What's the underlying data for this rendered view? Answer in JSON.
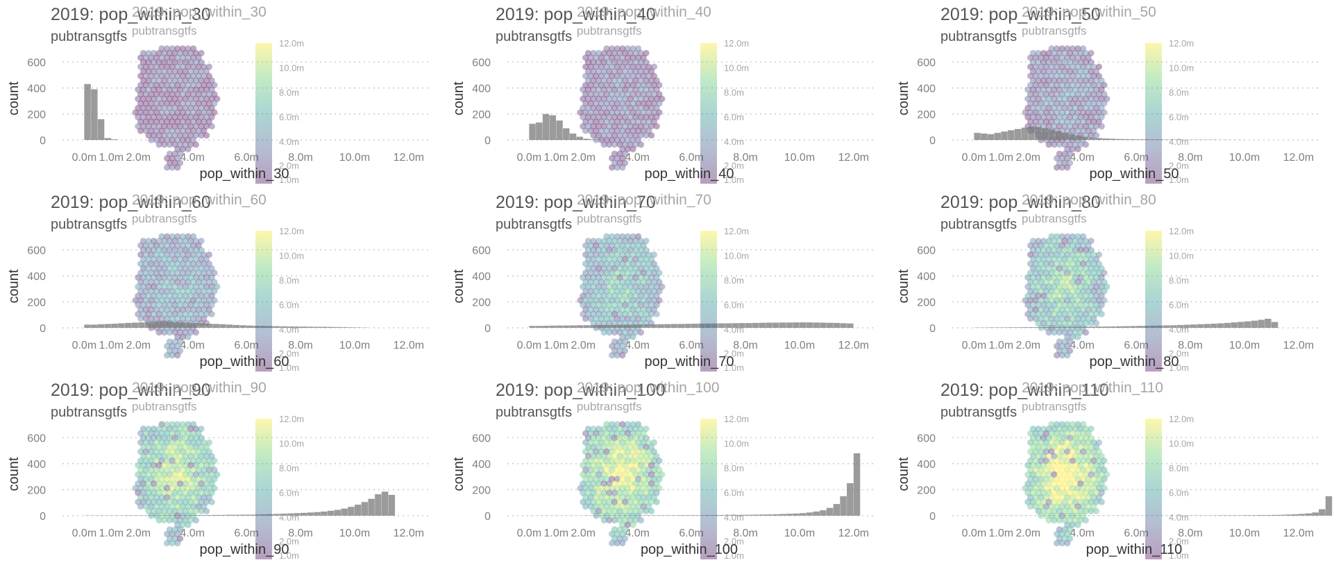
{
  "colors": {
    "bar": "#7a7a7a",
    "viridis": [
      "#440154",
      "#3b528b",
      "#21918c",
      "#5ec962",
      "#fde725"
    ]
  },
  "chart_data": [
    {
      "type": "bar",
      "title": "2019: pop_within_30",
      "subtitle": "pubtransgtfs",
      "overlay_title": "2019: pop_within_30",
      "overlay_subtitle": "pubtransgtfs",
      "xlabel": "pop_within_30",
      "ylabel": "count",
      "xlim": [
        -0.6,
        12.8
      ],
      "ylim": [
        0,
        650
      ],
      "bin_width": 0.25,
      "x_tick_labels": [
        "0.0m",
        "1.0m",
        "2.0m",
        "4.0m",
        "6.0m",
        "8.0m",
        "10.0m",
        "12.0m"
      ],
      "y_tick_labels": [
        "0",
        "200",
        "400",
        "600"
      ],
      "colorbar_labels": [
        "12.0m",
        "10.0m",
        "8.0m",
        "6.0m",
        "4.0m",
        "2.0m",
        "1.0m"
      ],
      "map_level": 0.08,
      "values": [
        430,
        390,
        160,
        15,
        5
      ]
    },
    {
      "type": "bar",
      "title": "2019: pop_within_40",
      "subtitle": "pubtransgtfs",
      "overlay_title": "2019: pop_within_40",
      "overlay_subtitle": "pubtransgtfs",
      "xlabel": "pop_within_40",
      "ylabel": "count",
      "xlim": [
        -0.6,
        12.8
      ],
      "ylim": [
        0,
        650
      ],
      "bin_width": 0.25,
      "x_tick_labels": [
        "0.0m",
        "1.0m",
        "2.0m",
        "4.0m",
        "6.0m",
        "8.0m",
        "10.0m",
        "12.0m"
      ],
      "y_tick_labels": [
        "0",
        "200",
        "400",
        "600"
      ],
      "colorbar_labels": [
        "12.0m",
        "10.0m",
        "8.0m",
        "6.0m",
        "4.0m",
        "2.0m",
        "1.0m"
      ],
      "map_level": 0.14,
      "values": [
        125,
        135,
        200,
        190,
        150,
        90,
        50,
        25,
        10,
        5,
        3
      ]
    },
    {
      "type": "bar",
      "title": "2019: pop_within_50",
      "subtitle": "pubtransgtfs",
      "overlay_title": "2019: pop_within_50",
      "overlay_subtitle": "pubtransgtfs",
      "xlabel": "pop_within_50",
      "ylabel": "count",
      "xlim": [
        -0.6,
        12.8
      ],
      "ylim": [
        0,
        650
      ],
      "bin_width": 0.25,
      "x_tick_labels": [
        "0.0m",
        "1.0m",
        "2.0m",
        "4.0m",
        "6.0m",
        "8.0m",
        "10.0m",
        "12.0m"
      ],
      "y_tick_labels": [
        "0",
        "200",
        "400",
        "600"
      ],
      "colorbar_labels": [
        "12.0m",
        "10.0m",
        "8.0m",
        "6.0m",
        "4.0m",
        "2.0m",
        "1.0m"
      ],
      "map_level": 0.24,
      "values": [
        55,
        50,
        45,
        55,
        65,
        75,
        85,
        95,
        105,
        100,
        90,
        80,
        70,
        55,
        45,
        35,
        25,
        20,
        15,
        12,
        10,
        8,
        7,
        6,
        5,
        5,
        4,
        4,
        3,
        3,
        3,
        2,
        2,
        2,
        2,
        2,
        1,
        1,
        1,
        1
      ]
    },
    {
      "type": "bar",
      "title": "2019: pop_within_60",
      "subtitle": "pubtransgtfs",
      "overlay_title": "2019: pop_within_60",
      "overlay_subtitle": "pubtransgtfs",
      "xlabel": "pop_within_60",
      "ylabel": "count",
      "xlim": [
        -0.6,
        12.8
      ],
      "ylim": [
        0,
        650
      ],
      "bin_width": 0.25,
      "x_tick_labels": [
        "0.0m",
        "1.0m",
        "2.0m",
        "4.0m",
        "6.0m",
        "8.0m",
        "10.0m",
        "12.0m"
      ],
      "y_tick_labels": [
        "0",
        "200",
        "400",
        "600"
      ],
      "colorbar_labels": [
        "12.0m",
        "10.0m",
        "8.0m",
        "6.0m",
        "4.0m",
        "2.0m",
        "1.0m"
      ],
      "map_level": 0.38,
      "values": [
        25,
        25,
        28,
        30,
        32,
        35,
        38,
        40,
        42,
        45,
        48,
        50,
        48,
        45,
        42,
        40,
        38,
        35,
        32,
        30,
        28,
        25,
        22,
        20,
        18,
        16,
        15,
        14,
        13,
        12,
        11,
        10,
        10,
        9,
        8,
        8,
        7,
        6,
        5,
        4,
        3,
        2
      ]
    },
    {
      "type": "bar",
      "title": "2019: pop_within_70",
      "subtitle": "pubtransgtfs",
      "overlay_title": "2019: pop_within_70",
      "overlay_subtitle": "pubtransgtfs",
      "xlabel": "pop_within_70",
      "ylabel": "count",
      "xlim": [
        -0.6,
        12.8
      ],
      "ylim": [
        0,
        650
      ],
      "bin_width": 0.25,
      "x_tick_labels": [
        "0.0m",
        "1.0m",
        "2.0m",
        "4.0m",
        "6.0m",
        "8.0m",
        "10.0m",
        "12.0m"
      ],
      "y_tick_labels": [
        "0",
        "200",
        "400",
        "600"
      ],
      "colorbar_labels": [
        "12.0m",
        "10.0m",
        "8.0m",
        "6.0m",
        "4.0m",
        "2.0m",
        "1.0m"
      ],
      "map_level": 0.52,
      "values": [
        15,
        15,
        16,
        17,
        18,
        18,
        19,
        20,
        20,
        21,
        22,
        22,
        23,
        24,
        25,
        25,
        26,
        27,
        27,
        28,
        29,
        30,
        30,
        31,
        32,
        33,
        33,
        34,
        35,
        35,
        36,
        37,
        37,
        38,
        39,
        40,
        40,
        41,
        41,
        42,
        42,
        42,
        41,
        40,
        39,
        38,
        36,
        34
      ]
    },
    {
      "type": "bar",
      "title": "2019: pop_within_80",
      "subtitle": "pubtransgtfs",
      "overlay_title": "2019: pop_within_80",
      "overlay_subtitle": "pubtransgtfs",
      "xlabel": "pop_within_80",
      "ylabel": "count",
      "xlim": [
        -0.6,
        12.8
      ],
      "ylim": [
        0,
        650
      ],
      "bin_width": 0.25,
      "x_tick_labels": [
        "0.0m",
        "1.0m",
        "2.0m",
        "4.0m",
        "6.0m",
        "8.0m",
        "10.0m",
        "12.0m"
      ],
      "y_tick_labels": [
        "0",
        "200",
        "400",
        "600"
      ],
      "colorbar_labels": [
        "12.0m",
        "10.0m",
        "8.0m",
        "6.0m",
        "4.0m",
        "2.0m",
        "1.0m"
      ],
      "map_level": 0.66,
      "values": [
        2,
        2,
        3,
        3,
        3,
        4,
        4,
        5,
        5,
        5,
        6,
        6,
        7,
        7,
        8,
        8,
        9,
        9,
        10,
        10,
        11,
        12,
        13,
        14,
        15,
        16,
        17,
        18,
        19,
        20,
        22,
        24,
        26,
        28,
        30,
        32,
        35,
        38,
        42,
        46,
        50,
        55,
        62,
        70,
        45
      ]
    },
    {
      "type": "bar",
      "title": "2019: pop_within_90",
      "subtitle": "pubtransgtfs",
      "overlay_title": "2019: pop_within_90",
      "overlay_subtitle": "pubtransgtfs",
      "xlabel": "pop_within_90",
      "ylabel": "count",
      "xlim": [
        -0.6,
        12.8
      ],
      "ylim": [
        0,
        650
      ],
      "bin_width": 0.25,
      "x_tick_labels": [
        "0.0m",
        "1.0m",
        "2.0m",
        "4.0m",
        "6.0m",
        "8.0m",
        "10.0m",
        "12.0m"
      ],
      "y_tick_labels": [
        "0",
        "200",
        "400",
        "600"
      ],
      "colorbar_labels": [
        "12.0m",
        "10.0m",
        "8.0m",
        "6.0m",
        "4.0m",
        "2.0m",
        "1.0m"
      ],
      "map_level": 0.8,
      "values": [
        2,
        2,
        2,
        2,
        2,
        2,
        3,
        3,
        3,
        3,
        3,
        3,
        4,
        4,
        4,
        4,
        5,
        5,
        5,
        6,
        6,
        7,
        7,
        8,
        8,
        9,
        10,
        12,
        14,
        16,
        18,
        20,
        22,
        25,
        28,
        32,
        38,
        45,
        55,
        68,
        85,
        105,
        130,
        165,
        185,
        160
      ]
    },
    {
      "type": "bar",
      "title": "2019: pop_within_100",
      "subtitle": "pubtransgtfs",
      "overlay_title": "2019: pop_within_100",
      "overlay_subtitle": "pubtransgtfs",
      "xlabel": "pop_within_100",
      "ylabel": "count",
      "xlim": [
        -0.6,
        12.8
      ],
      "ylim": [
        0,
        650
      ],
      "bin_width": 0.25,
      "x_tick_labels": [
        "0.0m",
        "1.0m",
        "2.0m",
        "4.0m",
        "6.0m",
        "8.0m",
        "10.0m",
        "12.0m"
      ],
      "y_tick_labels": [
        "0",
        "200",
        "400",
        "600"
      ],
      "colorbar_labels": [
        "12.0m",
        "10.0m",
        "8.0m",
        "6.0m",
        "4.0m",
        "2.0m",
        "1.0m"
      ],
      "map_level": 0.9,
      "values": [
        1,
        1,
        1,
        1,
        1,
        1,
        1,
        1,
        2,
        2,
        2,
        2,
        2,
        2,
        2,
        2,
        3,
        3,
        3,
        3,
        3,
        3,
        4,
        4,
        4,
        4,
        5,
        5,
        5,
        6,
        6,
        7,
        7,
        8,
        9,
        10,
        11,
        13,
        15,
        17,
        20,
        25,
        32,
        42,
        60,
        90,
        150,
        250,
        480
      ]
    },
    {
      "type": "bar",
      "title": "2019: pop_within_110",
      "subtitle": "pubtransgtfs",
      "overlay_title": "2019: pop_within_110",
      "overlay_subtitle": "pubtransgtfs",
      "xlabel": "pop_within_110",
      "ylabel": "count",
      "xlim": [
        -0.6,
        12.8
      ],
      "ylim": [
        0,
        650
      ],
      "bin_width": 0.25,
      "x_tick_labels": [
        "0.0m",
        "1.0m",
        "2.0m",
        "4.0m",
        "6.0m",
        "8.0m",
        "10.0m",
        "12.0m"
      ],
      "y_tick_labels": [
        "0",
        "200",
        "400",
        "600"
      ],
      "colorbar_labels": [
        "12.0m",
        "10.0m",
        "8.0m",
        "6.0m",
        "4.0m",
        "2.0m",
        "1.0m"
      ],
      "map_level": 0.97,
      "values": [
        1,
        1,
        1,
        1,
        1,
        1,
        1,
        1,
        1,
        1,
        1,
        1,
        1,
        1,
        1,
        1,
        1,
        1,
        1,
        1,
        1,
        1,
        1,
        1,
        1,
        1,
        1,
        1,
        1,
        1,
        2,
        2,
        2,
        2,
        2,
        2,
        3,
        3,
        3,
        3,
        4,
        4,
        5,
        5,
        6,
        7,
        9,
        11,
        14,
        18,
        25,
        50,
        150
      ]
    }
  ]
}
